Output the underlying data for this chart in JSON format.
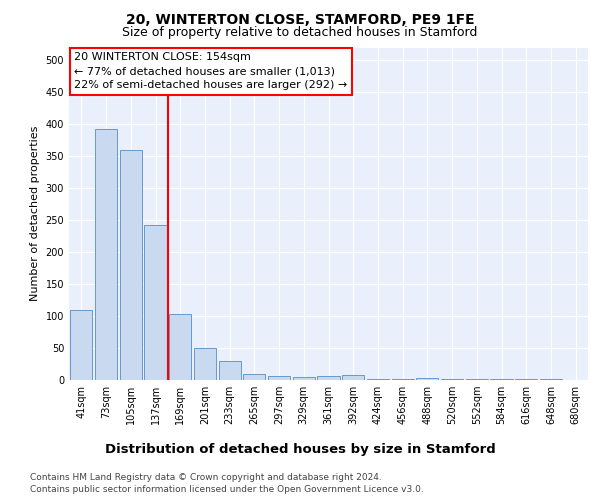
{
  "title": "20, WINTERTON CLOSE, STAMFORD, PE9 1FE",
  "subtitle": "Size of property relative to detached houses in Stamford",
  "xlabel": "Distribution of detached houses by size in Stamford",
  "ylabel": "Number of detached properties",
  "footnote1": "Contains HM Land Registry data © Crown copyright and database right 2024.",
  "footnote2": "Contains public sector information licensed under the Open Government Licence v3.0.",
  "categories": [
    "41sqm",
    "73sqm",
    "105sqm",
    "137sqm",
    "169sqm",
    "201sqm",
    "233sqm",
    "265sqm",
    "297sqm",
    "329sqm",
    "361sqm",
    "392sqm",
    "424sqm",
    "456sqm",
    "488sqm",
    "520sqm",
    "552sqm",
    "584sqm",
    "616sqm",
    "648sqm",
    "680sqm"
  ],
  "values": [
    110,
    393,
    360,
    243,
    103,
    50,
    30,
    10,
    6,
    5,
    7,
    8,
    1,
    1,
    3,
    1,
    1,
    1,
    1,
    2,
    0
  ],
  "bar_color": "#c9d9f0",
  "bar_edge_color": "#6699cc",
  "red_line_x": 3.5,
  "annotation_line1": "20 WINTERTON CLOSE: 154sqm",
  "annotation_line2": "← 77% of detached houses are smaller (1,013)",
  "annotation_line3": "22% of semi-detached houses are larger (292) →",
  "annotation_box_color": "white",
  "annotation_box_edge_color": "red",
  "vline_color": "red",
  "ylim": [
    0,
    520
  ],
  "yticks": [
    0,
    50,
    100,
    150,
    200,
    250,
    300,
    350,
    400,
    450,
    500
  ],
  "bg_color": "#eaf0fb",
  "plot_bg_color": "#eaf0fb",
  "grid_color": "white",
  "title_fontsize": 10,
  "subtitle_fontsize": 9,
  "xlabel_fontsize": 9.5,
  "ylabel_fontsize": 8,
  "tick_fontsize": 7,
  "annotation_fontsize": 8,
  "footnote_fontsize": 6.5
}
